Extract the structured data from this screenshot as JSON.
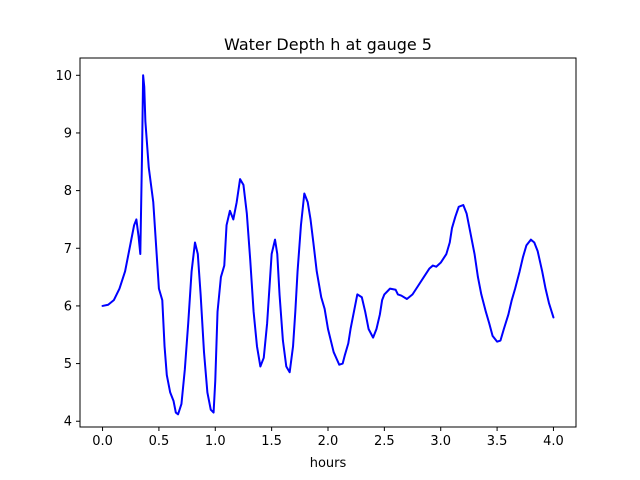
{
  "colors": {
    "background": "#ffffff",
    "axes": "#000000",
    "line": "#0000ff"
  },
  "chart_data": {
    "type": "line",
    "title": "Water Depth h at gauge 5",
    "xlabel": "hours",
    "ylabel": "",
    "xlim": [
      -0.2,
      4.2
    ],
    "ylim": [
      3.9,
      10.3
    ],
    "xticks": [
      0.0,
      0.5,
      1.0,
      1.5,
      2.0,
      2.5,
      3.0,
      3.5,
      4.0
    ],
    "xtick_labels": [
      "0.0",
      "0.5",
      "1.0",
      "1.5",
      "2.0",
      "2.5",
      "3.0",
      "3.5",
      "4.0"
    ],
    "yticks": [
      4,
      5,
      6,
      7,
      8,
      9,
      10
    ],
    "ytick_labels": [
      "4",
      "5",
      "6",
      "7",
      "8",
      "9",
      "10"
    ],
    "grid": false,
    "series": [
      {
        "color": "#0000ff",
        "x": [
          0.0,
          0.05,
          0.1,
          0.15,
          0.2,
          0.25,
          0.28,
          0.3,
          0.32,
          0.335,
          0.35,
          0.36,
          0.37,
          0.38,
          0.41,
          0.45,
          0.48,
          0.5,
          0.53,
          0.55,
          0.57,
          0.6,
          0.63,
          0.65,
          0.67,
          0.7,
          0.73,
          0.76,
          0.79,
          0.82,
          0.845,
          0.87,
          0.9,
          0.93,
          0.96,
          0.985,
          1.0,
          1.02,
          1.05,
          1.08,
          1.1,
          1.13,
          1.16,
          1.19,
          1.22,
          1.25,
          1.28,
          1.31,
          1.34,
          1.37,
          1.4,
          1.43,
          1.46,
          1.5,
          1.53,
          1.55,
          1.57,
          1.6,
          1.63,
          1.66,
          1.69,
          1.71,
          1.73,
          1.76,
          1.79,
          1.82,
          1.845,
          1.87,
          1.9,
          1.94,
          1.97,
          2.0,
          2.05,
          2.1,
          2.13,
          2.15,
          2.18,
          2.2,
          2.23,
          2.26,
          2.3,
          2.33,
          2.36,
          2.4,
          2.43,
          2.46,
          2.48,
          2.5,
          2.55,
          2.6,
          2.62,
          2.65,
          2.7,
          2.75,
          2.8,
          2.85,
          2.9,
          2.93,
          2.96,
          3.0,
          3.05,
          3.08,
          3.1,
          3.13,
          3.16,
          3.2,
          3.23,
          3.26,
          3.3,
          3.33,
          3.36,
          3.4,
          3.43,
          3.46,
          3.5,
          3.53,
          3.56,
          3.6,
          3.63,
          3.66,
          3.7,
          3.73,
          3.76,
          3.8,
          3.83,
          3.86,
          3.9,
          3.93,
          3.96,
          4.0
        ],
        "y": [
          6.0,
          6.02,
          6.1,
          6.3,
          6.6,
          7.1,
          7.4,
          7.5,
          7.2,
          6.9,
          8.6,
          10.0,
          9.8,
          9.2,
          8.4,
          7.8,
          6.9,
          6.3,
          6.1,
          5.3,
          4.8,
          4.5,
          4.35,
          4.15,
          4.12,
          4.3,
          4.9,
          5.7,
          6.6,
          7.1,
          6.9,
          6.2,
          5.2,
          4.5,
          4.2,
          4.15,
          4.7,
          5.9,
          6.5,
          6.7,
          7.4,
          7.65,
          7.5,
          7.8,
          8.2,
          8.1,
          7.6,
          6.8,
          5.9,
          5.3,
          4.95,
          5.1,
          5.7,
          6.9,
          7.15,
          6.9,
          6.2,
          5.4,
          4.95,
          4.85,
          5.3,
          5.9,
          6.6,
          7.4,
          7.95,
          7.8,
          7.5,
          7.1,
          6.6,
          6.15,
          5.95,
          5.6,
          5.2,
          4.98,
          5.0,
          5.15,
          5.35,
          5.6,
          5.9,
          6.2,
          6.15,
          5.9,
          5.6,
          5.45,
          5.6,
          5.85,
          6.1,
          6.2,
          6.3,
          6.28,
          6.2,
          6.18,
          6.12,
          6.2,
          6.35,
          6.5,
          6.65,
          6.7,
          6.68,
          6.75,
          6.9,
          7.1,
          7.35,
          7.55,
          7.72,
          7.75,
          7.6,
          7.3,
          6.9,
          6.5,
          6.2,
          5.9,
          5.7,
          5.48,
          5.38,
          5.4,
          5.6,
          5.85,
          6.1,
          6.3,
          6.6,
          6.85,
          7.05,
          7.15,
          7.1,
          6.95,
          6.6,
          6.3,
          6.05,
          5.8
        ]
      }
    ]
  }
}
